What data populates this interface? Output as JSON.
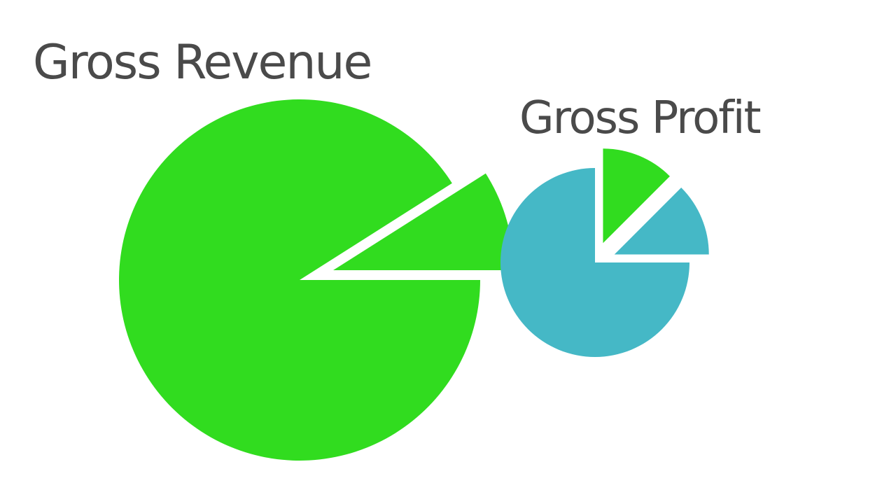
{
  "chart_data": [
    {
      "type": "pie",
      "title": "Gross Revenue",
      "values": [
        9,
        91
      ],
      "colors": [
        "#31dc1f",
        "#31dc1f"
      ],
      "explode": [
        true,
        false
      ]
    },
    {
      "type": "pie",
      "title": "Gross Profit",
      "values": [
        12.5,
        12.5,
        75
      ],
      "colors": [
        "#45b8c6",
        "#31dc1f",
        "#45b8c6"
      ],
      "explode": [
        true,
        true,
        false
      ]
    }
  ]
}
